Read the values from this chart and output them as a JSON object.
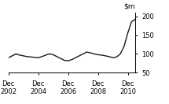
{
  "background_color": "#ffffff",
  "line_color": "#1a1a1a",
  "line_width": 1.0,
  "xlim": [
    0,
    34
  ],
  "ylim": [
    50,
    210
  ],
  "yticks": [
    50,
    100,
    150,
    200
  ],
  "ytick_labels": [
    "50",
    "100",
    "150",
    "200"
  ],
  "xtick_positions": [
    0,
    8,
    16,
    24,
    32
  ],
  "xtick_labels_line1": [
    "Dec",
    "Dec",
    "Dec",
    "Dec",
    "Dec"
  ],
  "xtick_labels_line2": [
    "2002",
    "2004",
    "2006",
    "2008",
    "2010"
  ],
  "x": [
    0,
    1,
    2,
    3,
    4,
    5,
    6,
    7,
    8,
    9,
    10,
    11,
    12,
    13,
    14,
    15,
    16,
    17,
    18,
    19,
    20,
    21,
    22,
    23,
    24,
    25,
    26,
    27,
    28,
    29,
    30,
    31,
    32,
    33,
    34
  ],
  "y": [
    90,
    95,
    100,
    97,
    95,
    93,
    92,
    91,
    90,
    93,
    97,
    100,
    98,
    93,
    88,
    83,
    82,
    85,
    90,
    95,
    100,
    105,
    103,
    100,
    98,
    97,
    95,
    93,
    90,
    92,
    100,
    120,
    155,
    185,
    192
  ]
}
